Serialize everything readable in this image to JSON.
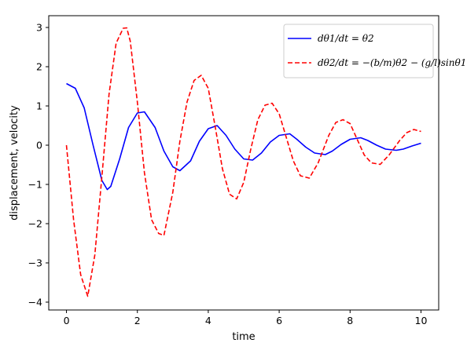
{
  "chart_data": {
    "type": "line",
    "title": "",
    "xlabel": "time",
    "ylabel": "displacement, velocity",
    "xlim": [
      -0.5,
      10.5
    ],
    "ylim": [
      -4.2,
      3.3
    ],
    "xticks": [
      0,
      2,
      4,
      6,
      8,
      10
    ],
    "yticks": [
      -4,
      -3,
      -2,
      -1,
      0,
      1,
      2,
      3
    ],
    "xtick_labels": [
      "0",
      "2",
      "4",
      "6",
      "8",
      "10"
    ],
    "ytick_labels": [
      "−4",
      "−3",
      "−2",
      "−1",
      "0",
      "1",
      "2",
      "3"
    ],
    "grid": false,
    "legend_position": "top-right",
    "series": [
      {
        "name": "dθ1/dt = θ2",
        "color": "#0000ff",
        "style": "solid",
        "x": [
          0.0,
          0.25,
          0.5,
          0.75,
          1.0,
          1.15,
          1.25,
          1.5,
          1.75,
          2.0,
          2.2,
          2.5,
          2.75,
          3.0,
          3.2,
          3.5,
          3.75,
          4.0,
          4.25,
          4.5,
          4.75,
          5.0,
          5.25,
          5.5,
          5.75,
          6.0,
          6.3,
          6.5,
          6.75,
          7.0,
          7.3,
          7.5,
          7.75,
          8.0,
          8.3,
          8.5,
          8.75,
          9.0,
          9.3,
          9.5,
          9.75,
          10.0
        ],
        "y": [
          1.57,
          1.45,
          0.95,
          0.0,
          -0.9,
          -1.13,
          -1.05,
          -0.35,
          0.45,
          0.82,
          0.85,
          0.45,
          -0.15,
          -0.55,
          -0.65,
          -0.4,
          0.1,
          0.42,
          0.5,
          0.25,
          -0.1,
          -0.35,
          -0.38,
          -0.2,
          0.08,
          0.25,
          0.29,
          0.15,
          -0.05,
          -0.2,
          -0.24,
          -0.15,
          0.02,
          0.15,
          0.19,
          0.12,
          0.0,
          -0.1,
          -0.13,
          -0.1,
          -0.02,
          0.05
        ]
      },
      {
        "name": "dθ2/dt = −(b/m)θ2 − (g/l)sinθ1",
        "color": "#ff0000",
        "style": "dashed",
        "x": [
          0.0,
          0.2,
          0.4,
          0.6,
          0.8,
          1.0,
          1.2,
          1.4,
          1.6,
          1.7,
          1.8,
          2.0,
          2.2,
          2.4,
          2.6,
          2.75,
          3.0,
          3.2,
          3.4,
          3.6,
          3.8,
          4.0,
          4.2,
          4.4,
          4.6,
          4.8,
          5.0,
          5.2,
          5.4,
          5.6,
          5.8,
          6.0,
          6.2,
          6.4,
          6.6,
          6.85,
          7.1,
          7.4,
          7.6,
          7.8,
          8.0,
          8.2,
          8.4,
          8.6,
          8.85,
          9.1,
          9.4,
          9.6,
          9.8,
          10.0
        ],
        "y": [
          0.0,
          -1.9,
          -3.3,
          -3.85,
          -2.8,
          -0.8,
          1.3,
          2.6,
          2.98,
          2.99,
          2.65,
          1.1,
          -0.7,
          -1.9,
          -2.25,
          -2.3,
          -1.2,
          0.1,
          1.1,
          1.65,
          1.78,
          1.45,
          0.45,
          -0.6,
          -1.25,
          -1.37,
          -0.95,
          -0.1,
          0.65,
          1.02,
          1.07,
          0.8,
          0.2,
          -0.4,
          -0.78,
          -0.84,
          -0.45,
          0.25,
          0.58,
          0.65,
          0.55,
          0.15,
          -0.25,
          -0.45,
          -0.49,
          -0.25,
          0.12,
          0.32,
          0.4,
          0.35
        ]
      }
    ]
  }
}
